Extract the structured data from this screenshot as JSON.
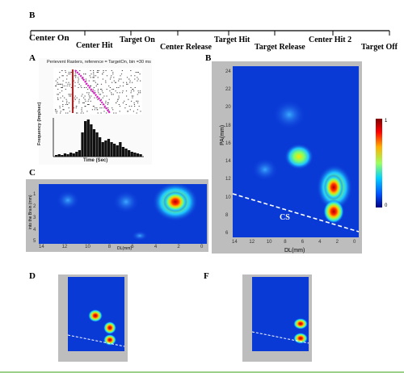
{
  "figure_letters": {
    "B_top": "B",
    "A": "A",
    "B": "B",
    "C": "C",
    "D": "D",
    "F": "F"
  },
  "timeline": {
    "events": [
      "Center On",
      "Center Hit",
      "Target On",
      "Center Release",
      "Target Hit",
      "Target Release",
      "Center Hit 2",
      "Target Off"
    ]
  },
  "panel_a": {
    "title": "Perievent Rasters, reference = TargetOn, bin =30 ms",
    "ylabel": "Frequency (Imp/sec)",
    "xlabel": "Time (Sec)"
  },
  "panel_b": {
    "ylabel": "PA(mm)",
    "xlabel": "DL(mm)",
    "yticks": [
      "24",
      "22",
      "20",
      "18",
      "16",
      "14",
      "12",
      "10",
      "8",
      "6"
    ],
    "xticks": [
      "14",
      "12",
      "10",
      "8",
      "6",
      "4",
      "2",
      "0"
    ],
    "annotation": "CS"
  },
  "panel_c": {
    "ylabel": "into the Brain (mm)",
    "xlabel": "DL(mm)",
    "yticks": [
      "1",
      "2",
      "3",
      "4",
      "5"
    ],
    "xticks": [
      "14",
      "12",
      "10",
      "8",
      "6",
      "4",
      "2",
      "0"
    ]
  },
  "colorbar": {
    "max": "1",
    "min": "0"
  },
  "colors": {
    "heat_base": "#0a3ad6",
    "frame": "#bdbdbd"
  }
}
